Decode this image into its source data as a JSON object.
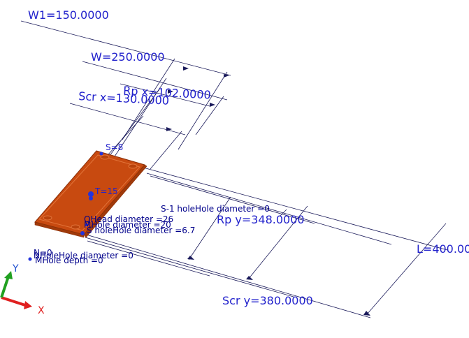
{
  "dimensions": {
    "w1": "W1=150.0000",
    "w": "W=250.0000",
    "rpx": "Rp x=102.0000",
    "scrx": "Scr x=130.0000",
    "rpy": "Rp y=348.0000",
    "scry": "Scr y=380.0000",
    "l": "L=400.00"
  },
  "annotations": {
    "s": "S=8",
    "t": "T=15",
    "s1_hole": "S-1 holeHole diameter =0",
    "head_diameter": "QHead diameter =26",
    "m_hole": "MHole diameter =20",
    "s_hole": "S holeHole diameter =6.7",
    "n_hole": "NHoleHole diameter =0",
    "m_depth": "MHole depth =0",
    "n_label": "N=0"
  },
  "axes": {
    "x_label": "X",
    "y_label": "Y",
    "x_color": "#e02020",
    "y_color": "#20a020"
  },
  "colors": {
    "plate": "#c84a10",
    "plate_edge": "#8a2e06",
    "dimension_text": "#2222cc"
  }
}
